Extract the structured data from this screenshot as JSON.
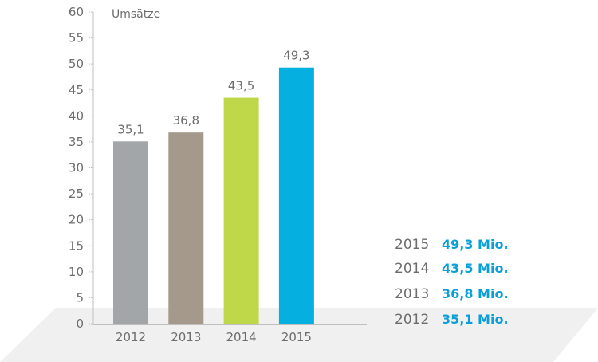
{
  "chart_data": {
    "type": "bar",
    "title": "Umsätze",
    "categories": [
      "2012",
      "2013",
      "2014",
      "2015"
    ],
    "values": [
      35.1,
      36.8,
      43.5,
      49.3
    ],
    "value_labels": [
      "35,1",
      "36,8",
      "43,5",
      "49,3"
    ],
    "bar_colors": [
      "#a3a6a8",
      "#a5998b",
      "#bfd849",
      "#05b0e0"
    ],
    "ylim": [
      0,
      60
    ],
    "yticks": [
      0,
      5,
      10,
      15,
      20,
      25,
      30,
      35,
      40,
      45,
      50,
      55,
      60
    ],
    "grid": false,
    "legend": {
      "placement": "bottom-right",
      "value_color": "#0a9fd8",
      "entries": [
        {
          "year": "2015",
          "value": "49,3 Mio."
        },
        {
          "year": "2014",
          "value": "43,5 Mio."
        },
        {
          "year": "2013",
          "value": "36,8 Mio."
        },
        {
          "year": "2012",
          "value": "35,1 Mio."
        }
      ]
    },
    "floor_color": "#f0f0f0",
    "axis_color": "#bfbfbf"
  }
}
